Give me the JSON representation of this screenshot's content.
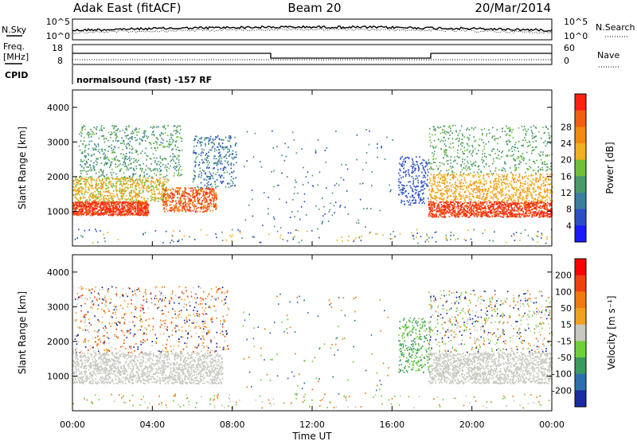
{
  "header": {
    "station": "Adak East (fitACF)",
    "beam": "Beam 20",
    "date": "20/Mar/2014"
  },
  "params": {
    "nsky_label": "N.Sky",
    "nsearch_label": "N.Search",
    "freq_label_line1": "Freq.",
    "freq_label_line2": "[MHz]",
    "nave_label": "Nave",
    "cpid_label": "CPID",
    "cpid_text": "normalsound (fast) -157 RF",
    "noise_ticks_left": [
      "10^5",
      "10^0"
    ],
    "noise_ticks_right": [
      "10^5",
      "10^0"
    ],
    "freq_ticks": [
      "18",
      "8"
    ],
    "nave_ticks": [
      "60",
      "0"
    ]
  },
  "chart_data": [
    {
      "type": "heatmap",
      "name": "power-panel",
      "ylabel": "Slant Range [km]",
      "yticks": [
        "1000",
        "2000",
        "3000",
        "4000"
      ],
      "ylim": [
        0,
        4500
      ],
      "xlim": [
        "00:00",
        "24:00"
      ],
      "colorbar": {
        "label": "Power [dB]",
        "ticks": [
          "4",
          "8",
          "12",
          "16",
          "20",
          "24",
          "28"
        ],
        "colors": [
          "#1a1aff",
          "#2b4fc4",
          "#3a7fa0",
          "#4a9a6a",
          "#6fbf3a",
          "#f0b020",
          "#f08a10",
          "#f06010",
          "#ff2010"
        ]
      }
    },
    {
      "type": "heatmap",
      "name": "velocity-panel",
      "ylabel": "Slant Range [km]",
      "yticks": [
        "1000",
        "2000",
        "3000",
        "4000"
      ],
      "ylim": [
        0,
        4500
      ],
      "xlim": [
        "00:00",
        "24:00"
      ],
      "colorbar": {
        "label": "Velocity [m s⁻¹]",
        "ticks": [
          "200",
          "100",
          "50",
          "15",
          "-15",
          "-50",
          "-100",
          "-200"
        ],
        "colors": [
          "#1a2aa0",
          "#2e6fb0",
          "#3a9a60",
          "#6fcf3a",
          "#c8c8c0",
          "#f0a020",
          "#f07a10",
          "#f04010",
          "#ff0000"
        ]
      }
    }
  ],
  "x_axis": {
    "ticks": [
      "00:00",
      "04:00",
      "08:00",
      "12:00",
      "16:00",
      "20:00",
      "00:00"
    ],
    "label": "Time UT"
  },
  "colors": {
    "power_ground": "#f03010",
    "power_mid": "#f0b020",
    "power_far": "#4a9a6a",
    "power_blue": "#2b4fc4",
    "vel_gray": "#c8c8c0",
    "vel_green": "#6fcf3a",
    "vel_orange": "#f0a020"
  }
}
